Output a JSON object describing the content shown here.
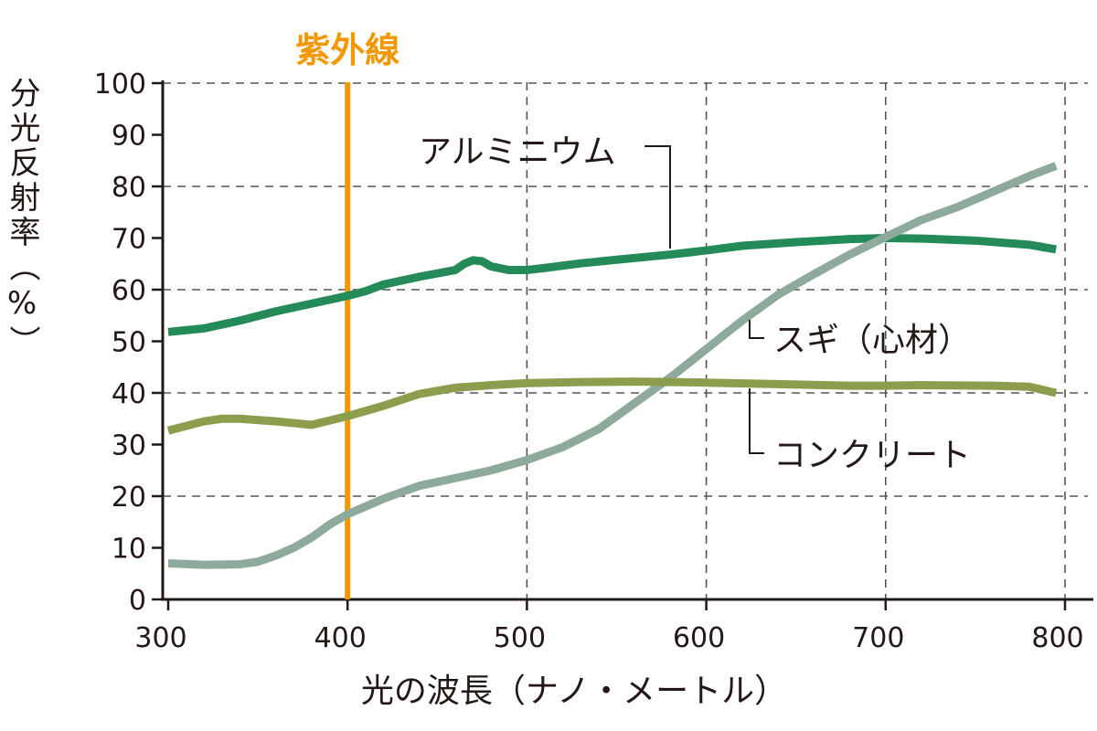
{
  "chart_data": {
    "type": "line",
    "title": "",
    "xlabel": "光の波長（ナノ・メートル）",
    "ylabel_chars": [
      "分",
      "光",
      "反",
      "射",
      "率",
      "（",
      "%",
      "）"
    ],
    "ylabel": "分光反射率（%）",
    "xlim": [
      300,
      800
    ],
    "ylim": [
      0,
      100
    ],
    "xticks": [
      300,
      400,
      500,
      600,
      700,
      800
    ],
    "yticks": [
      0,
      10,
      20,
      30,
      40,
      50,
      60,
      70,
      80,
      90,
      100
    ],
    "grid": "dashed",
    "uv_marker": {
      "x": 400,
      "label": "紫外線",
      "color": "#f39800"
    },
    "series": [
      {
        "name": "アルミニウム",
        "color": "#238a58",
        "x": [
          300,
          320,
          340,
          360,
          380,
          400,
          410,
          420,
          440,
          460,
          465,
          470,
          475,
          480,
          490,
          500,
          510,
          530,
          550,
          580,
          600,
          620,
          650,
          680,
          700,
          720,
          750,
          780,
          795
        ],
        "y": [
          51.8,
          52.5,
          54,
          55.8,
          57.3,
          58.8,
          59.7,
          61,
          62.5,
          63.8,
          65,
          65.7,
          65.5,
          64.5,
          63.8,
          63.8,
          64.2,
          65.1,
          65.8,
          66.8,
          67.6,
          68.5,
          69.2,
          69.8,
          70,
          69.9,
          69.5,
          68.7,
          67.8
        ]
      },
      {
        "name": "スギ（心材）",
        "color": "#8daa9a",
        "x": [
          300,
          320,
          340,
          350,
          360,
          370,
          380,
          390,
          400,
          420,
          440,
          460,
          480,
          500,
          520,
          540,
          560,
          580,
          600,
          620,
          640,
          660,
          680,
          700,
          720,
          740,
          760,
          780,
          795
        ],
        "y": [
          7,
          6.7,
          6.8,
          7.3,
          8.5,
          10,
          12,
          14.5,
          16.5,
          19.5,
          22,
          23.5,
          25,
          27,
          29.5,
          33,
          38,
          43,
          48.5,
          54,
          59,
          63,
          66.8,
          70.2,
          73.5,
          76,
          79,
          82,
          84
        ]
      },
      {
        "name": "コンクリート",
        "color": "#8c9e4d",
        "x": [
          300,
          320,
          330,
          340,
          360,
          380,
          400,
          420,
          440,
          460,
          480,
          500,
          530,
          560,
          600,
          640,
          680,
          700,
          720,
          760,
          780,
          795
        ],
        "y": [
          32.7,
          34.5,
          35,
          35,
          34.5,
          33.8,
          35.5,
          37.5,
          39.8,
          41,
          41.5,
          41.9,
          42.1,
          42.2,
          42,
          41.7,
          41.4,
          41.4,
          41.5,
          41.4,
          41.2,
          40
        ]
      }
    ]
  }
}
